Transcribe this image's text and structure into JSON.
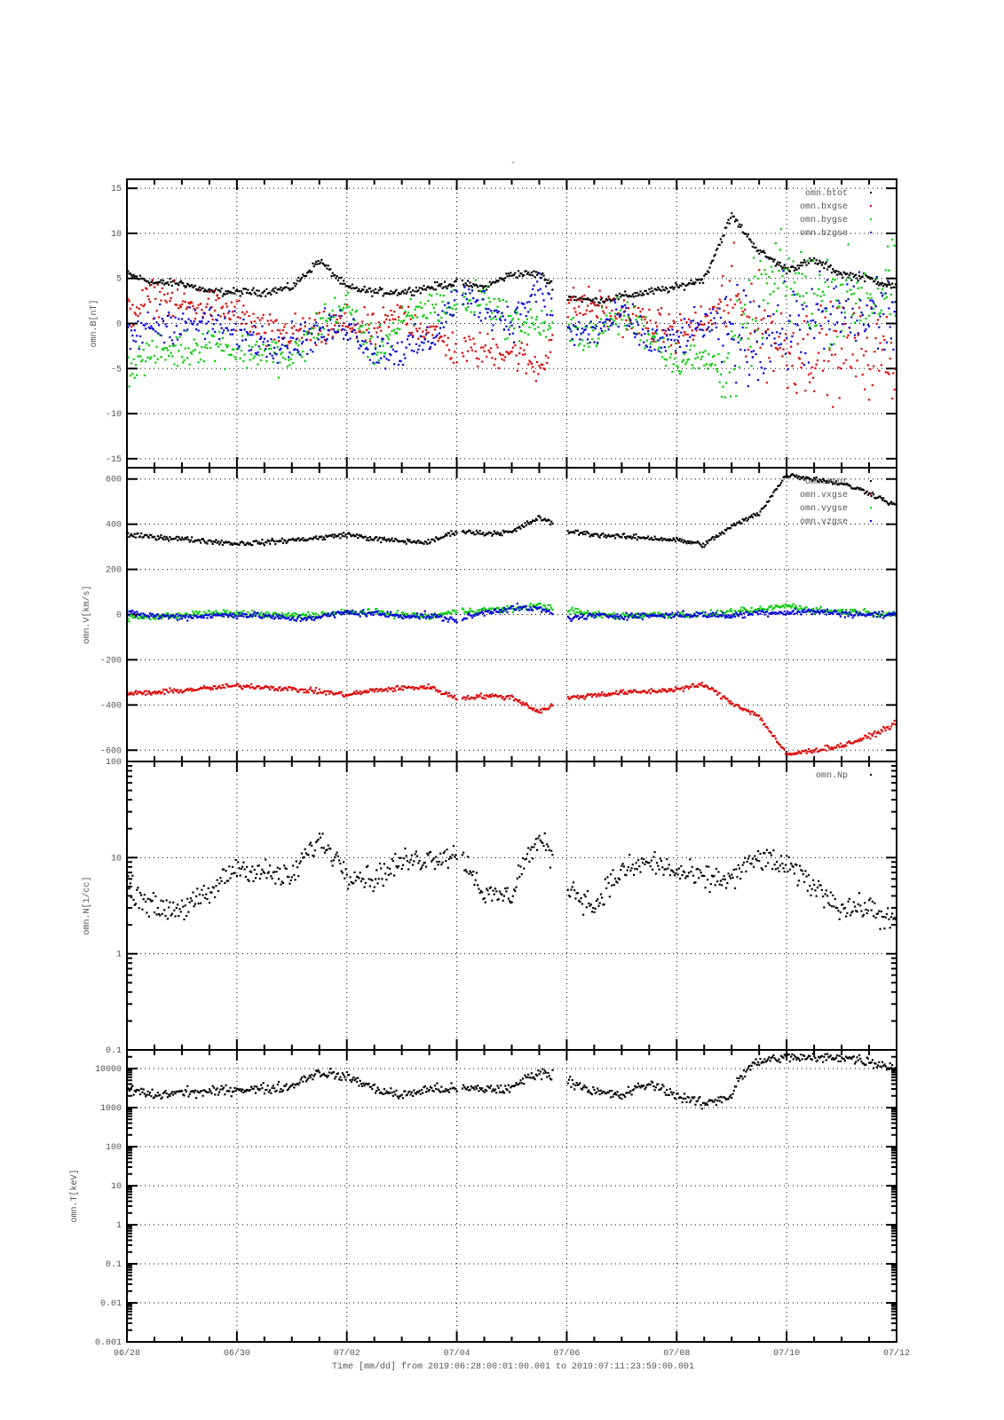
{
  "chart_data": {
    "type": "scatter",
    "title": "-",
    "xlabel": "Time [mm/dd]  from 2019:06:28:00:01:00.001  to  2019:07:11:23:59:00.001",
    "x_unit": "days since 06/28",
    "xlim": [
      0,
      14
    ],
    "x_tick_labels": [
      "06/28",
      "06/30",
      "07/02",
      "07/04",
      "07/06",
      "07/08",
      "07/10",
      "07/12"
    ],
    "x": [
      0,
      0.5,
      1,
      1.5,
      2,
      2.5,
      3,
      3.5,
      4,
      4.5,
      5,
      5.5,
      6,
      6.5,
      7,
      7.5,
      8,
      8.5,
      9,
      9.5,
      10,
      10.5,
      11,
      11.5,
      12,
      12.5,
      13,
      13.5,
      14
    ],
    "data_gaps": [
      [
        6.0,
        6.08
      ],
      [
        7.75,
        8.0
      ]
    ],
    "grid": true,
    "panels": [
      {
        "ylabel": "omn.B[nT]",
        "scale": "linear",
        "ylim": [
          -16,
          16
        ],
        "y_ticks": [
          -15,
          -10,
          -5,
          0,
          5,
          10,
          15
        ],
        "y_tick_labels": [
          "-15",
          "-10",
          "-5",
          "0",
          "5",
          "10",
          "15"
        ],
        "legend_position": "top-right",
        "series": [
          {
            "name": "omn.btot",
            "color": "#000000",
            "values": [
              5.5,
              4.5,
              4.5,
              3.5,
              3.5,
              3.5,
              4,
              7,
              4,
              3.5,
              3.5,
              4,
              4.5,
              4,
              5.5,
              5.5,
              3,
              2.5,
              3,
              3.5,
              4,
              5,
              12,
              8,
              6,
              7,
              5.5,
              5,
              4
            ]
          },
          {
            "name": "omn.bxgse",
            "color": "#dd0000",
            "values": [
              1,
              3,
              2,
              2,
              1,
              -1,
              -1,
              -1,
              0,
              -1,
              1,
              -1,
              -3,
              -3,
              -3,
              -5,
              2,
              2,
              1,
              0,
              -1,
              0,
              3,
              0,
              -3,
              -3,
              -3,
              -3,
              -4
            ]
          },
          {
            "name": "omn.bygse",
            "color": "#00cc00",
            "values": [
              -5,
              -3,
              -3,
              -2,
              -3,
              -3,
              -4,
              0,
              2,
              -3,
              0,
              2,
              2,
              3,
              0,
              0,
              -1,
              -1,
              1,
              -1,
              -4,
              -4,
              -5,
              3,
              5,
              3,
              3,
              3,
              4
            ]
          },
          {
            "name": "omn.bzgse",
            "color": "#0000dd",
            "values": [
              -2,
              0,
              0,
              0,
              -1,
              -2,
              -2,
              -1,
              0,
              -3,
              -3,
              -2,
              3,
              2,
              0,
              4,
              -1,
              -1,
              1,
              -2,
              -2,
              0,
              -1,
              -2,
              0,
              0,
              1,
              1,
              1
            ]
          }
        ]
      },
      {
        "ylabel": "omn.V[km/s]",
        "scale": "linear",
        "ylim": [
          -650,
          650
        ],
        "y_ticks": [
          -600,
          -400,
          -200,
          0,
          200,
          400,
          600
        ],
        "y_tick_labels": [
          "-600",
          "-400",
          "-200",
          "0",
          "200",
          "400",
          "600"
        ],
        "legend_position": "top-right",
        "series": [
          {
            "name": "omn.vtot",
            "color": "#000000",
            "values": [
              350,
              345,
              335,
              325,
              315,
              320,
              330,
              340,
              355,
              335,
              325,
              320,
              370,
              360,
              365,
              430,
              370,
              355,
              345,
              340,
              330,
              310,
              390,
              450,
              620,
              600,
              580,
              540,
              480
            ]
          },
          {
            "name": "omn.vxgse",
            "color": "#dd0000",
            "values": [
              -350,
              -345,
              -335,
              -325,
              -315,
              -320,
              -330,
              -340,
              -355,
              -335,
              -325,
              -320,
              -370,
              -360,
              -365,
              -430,
              -370,
              -355,
              -345,
              -340,
              -330,
              -310,
              -390,
              -450,
              -620,
              -600,
              -580,
              -540,
              -480
            ]
          },
          {
            "name": "omn.vygse",
            "color": "#00cc00",
            "values": [
              -15,
              -10,
              0,
              5,
              5,
              0,
              -5,
              0,
              10,
              10,
              0,
              -10,
              15,
              20,
              25,
              40,
              20,
              0,
              -5,
              0,
              0,
              0,
              10,
              20,
              40,
              20,
              15,
              10,
              0
            ]
          },
          {
            "name": "omn.vzgse",
            "color": "#0000dd",
            "values": [
              5,
              -5,
              -10,
              -5,
              0,
              -5,
              -20,
              -10,
              10,
              5,
              -5,
              -5,
              -25,
              10,
              30,
              25,
              -15,
              -5,
              -5,
              -5,
              0,
              0,
              -5,
              10,
              10,
              15,
              5,
              0,
              0
            ]
          }
        ]
      },
      {
        "ylabel": "omn.N[1/cc]",
        "scale": "log",
        "ylim": [
          0.1,
          100
        ],
        "y_ticks": [
          0.1,
          1,
          10,
          100
        ],
        "y_tick_labels": [
          "0.1",
          "1",
          "10",
          "100"
        ],
        "legend_position": "top-right",
        "series": [
          {
            "name": "omn.Np",
            "color": "#000000",
            "values": [
              5,
              3,
              3,
              4,
              8,
              7,
              6,
              15,
              7,
              6,
              9,
              10,
              11,
              4,
              4,
              15,
              5,
              3,
              7,
              9,
              7,
              6,
              6,
              10,
              8,
              5,
              3,
              3,
              2
            ]
          }
        ]
      },
      {
        "ylabel": "omn.T[keV]",
        "scale": "log",
        "ylim": [
          0.001,
          30000
        ],
        "y_ticks": [
          0.001,
          0.01,
          0.1,
          1,
          10,
          100,
          1000,
          10000
        ],
        "y_tick_labels": [
          "0.001",
          "0.01",
          "0.1",
          "1",
          "10",
          "100",
          "1000",
          "10000"
        ],
        "legend_position": "top-right",
        "series": [
          {
            "name": "",
            "color": "#000000",
            "values": [
              3000,
              2000,
              2500,
              2500,
              3000,
              3000,
              3500,
              8000,
              6000,
              3000,
              2000,
              3000,
              3000,
              3000,
              3000,
              8000,
              5000,
              2500,
              2000,
              4000,
              2000,
              1200,
              2000,
              15000,
              20000,
              18000,
              20000,
              15000,
              10000
            ]
          }
        ]
      }
    ]
  }
}
